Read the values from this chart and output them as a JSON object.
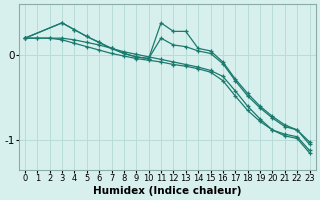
{
  "background_color": "#d8f0ed",
  "grid_color": "#b8ddd8",
  "line_color": "#1a7a6e",
  "xlabel": "Humidex (Indice chaleur)",
  "xlabel_fontsize": 7.5,
  "tick_fontsize": 6,
  "ylim": [
    -1.35,
    0.6
  ],
  "xlim": [
    -0.5,
    23.5
  ],
  "xticks": [
    0,
    1,
    2,
    3,
    4,
    5,
    6,
    7,
    8,
    9,
    10,
    11,
    12,
    13,
    14,
    15,
    16,
    17,
    18,
    19,
    20,
    21,
    22,
    23
  ],
  "yticks": [
    -1.0,
    0.0
  ],
  "ylabel_ticks": [
    "-1",
    "0"
  ],
  "series": [
    {
      "x": [
        0,
        1,
        2,
        3,
        4,
        5,
        6,
        7,
        8,
        9,
        10,
        11,
        12,
        13,
        14,
        15,
        16,
        17,
        18,
        19,
        20,
        21,
        22,
        23
      ],
      "y": [
        0.2,
        0.2,
        0.2,
        0.2,
        0.18,
        0.15,
        0.12,
        0.08,
        0.04,
        0.01,
        -0.02,
        -0.05,
        -0.08,
        -0.11,
        -0.14,
        -0.18,
        -0.25,
        -0.42,
        -0.6,
        -0.75,
        -0.88,
        -0.95,
        -0.98,
        -1.15
      ]
    },
    {
      "x": [
        0,
        1,
        2,
        3,
        4,
        5,
        6,
        7,
        8,
        9,
        10,
        11,
        12,
        13,
        14,
        15,
        16,
        17,
        18,
        19,
        20,
        21,
        22,
        23
      ],
      "y": [
        0.2,
        0.2,
        0.2,
        0.18,
        0.14,
        0.1,
        0.06,
        0.02,
        -0.01,
        -0.04,
        -0.06,
        -0.08,
        -0.11,
        -0.13,
        -0.16,
        -0.2,
        -0.3,
        -0.48,
        -0.65,
        -0.78,
        -0.88,
        -0.93,
        -0.96,
        -1.12
      ]
    },
    {
      "x": [
        0,
        3,
        4,
        5,
        6,
        7,
        8,
        9,
        10,
        11,
        12,
        13,
        14,
        15,
        16,
        17,
        18,
        19,
        20,
        21,
        22,
        23
      ],
      "y": [
        0.2,
        0.38,
        0.3,
        0.22,
        0.15,
        0.08,
        0.02,
        -0.02,
        -0.04,
        0.38,
        0.28,
        0.28,
        0.08,
        0.05,
        -0.08,
        -0.28,
        -0.45,
        -0.6,
        -0.72,
        -0.82,
        -0.88,
        -1.05
      ]
    },
    {
      "x": [
        0,
        3,
        4,
        5,
        6,
        7,
        8,
        9,
        10,
        11,
        12,
        13,
        14,
        15,
        16,
        17,
        18,
        19,
        20,
        21,
        22,
        23
      ],
      "y": [
        0.2,
        0.38,
        0.3,
        0.22,
        0.15,
        0.08,
        0.02,
        -0.02,
        -0.04,
        0.2,
        0.12,
        0.1,
        0.05,
        0.02,
        -0.1,
        -0.3,
        -0.48,
        -0.62,
        -0.74,
        -0.84,
        -0.88,
        -1.02
      ]
    }
  ]
}
